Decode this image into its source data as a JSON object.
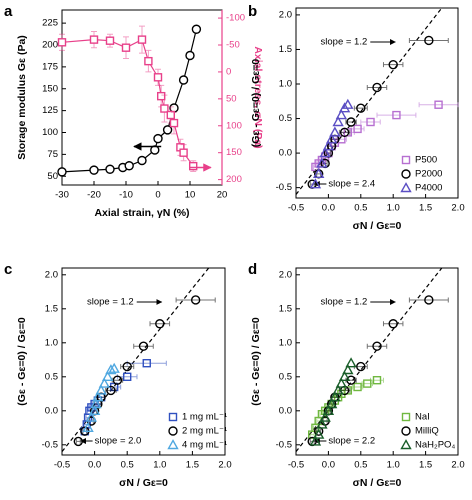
{
  "chart_data": [
    {
      "panel_label": "a",
      "type": "line",
      "xlabel": "Axial strain, γN (%)",
      "ylabel": "Storage modulus Gε (Pa)",
      "y2label": "Axial stress, σN (Pa)",
      "xlim": [
        -30,
        20
      ],
      "xticks": [
        -30,
        -20,
        -10,
        0,
        10,
        20
      ],
      "ylim": [
        40,
        240
      ],
      "yticks": [
        50,
        75,
        100,
        125,
        150,
        175,
        200,
        225
      ],
      "y2lim": [
        -115,
        210
      ],
      "y2_inverted": true,
      "y2ticks": [
        -100,
        -50,
        0,
        50,
        100,
        150,
        200
      ],
      "y2color": "#e8408a",
      "series": [
        {
          "color": "#000000",
          "marker": "circle",
          "x": [
            -30,
            -20,
            -15,
            -11,
            -9,
            -5,
            -1,
            0,
            3,
            5,
            8,
            10,
            12
          ],
          "values": [
            55,
            57,
            58,
            60,
            62,
            68,
            80,
            93,
            103,
            128,
            160,
            188,
            218
          ]
        },
        {
          "color": "#e8408a",
          "marker": "square",
          "axis": "y2",
          "x": [
            -30,
            -20,
            -15,
            -10,
            -5,
            -3,
            0,
            1,
            2,
            4,
            5,
            7,
            8,
            11
          ],
          "values": [
            -55,
            -60,
            -58,
            -45,
            -60,
            -20,
            10,
            45,
            68,
            80,
            95,
            140,
            150,
            175
          ],
          "errors": [
            15,
            15,
            12,
            20,
            25,
            20,
            15,
            20,
            25,
            15,
            20,
            15,
            15,
            10
          ]
        }
      ]
    },
    {
      "panel_label": "b",
      "type": "scatter",
      "xlabel": "σN / Gε=0",
      "ylabel": "(Gε - Gε=0) / Gε=0",
      "xlim": [
        -0.5,
        2.0
      ],
      "xticks": [
        -0.5,
        {
          "value": 0,
          "label": "0.0"
        },
        0.5,
        {
          "value": 1,
          "label": "1.0"
        },
        1.5,
        {
          "value": 2,
          "label": "2.0"
        }
      ],
      "ylim": [
        -0.65,
        2.1
      ],
      "yticks": [
        -0.5,
        {
          "value": 0,
          "label": "0.0"
        },
        0.5,
        {
          "value": 1,
          "label": "1.0"
        },
        1.5,
        {
          "value": 2,
          "label": "2.0"
        }
      ],
      "fit_slope": 1.2,
      "annotations": [
        "slope = 1.2",
        "slope = 2.4"
      ],
      "legend": "lower right",
      "series": [
        {
          "name": "P500",
          "color": "#b76fd1",
          "marker": "square",
          "x": [
            -0.2,
            -0.15,
            -0.1,
            -0.05,
            0,
            0.05,
            0.1,
            0.2,
            0.3,
            0.45,
            0.65,
            1.05,
            1.7
          ],
          "values": [
            -0.2,
            -0.15,
            -0.1,
            -0.05,
            0,
            0.1,
            0.15,
            0.2,
            0.3,
            0.35,
            0.45,
            0.55,
            0.7
          ],
          "xerr": [
            0.03,
            0.03,
            0.03,
            0.03,
            0.03,
            0.05,
            0.05,
            0.08,
            0.1,
            0.1,
            0.15,
            0.3,
            0.3
          ]
        },
        {
          "name": "P2000",
          "color": "#000000",
          "marker": "circle",
          "x": [
            -0.25,
            -0.15,
            -0.05,
            0,
            0.05,
            0.1,
            0.25,
            0.35,
            0.5,
            0.75,
            1.0,
            1.55
          ],
          "values": [
            -0.45,
            -0.3,
            -0.15,
            0,
            0.1,
            0.2,
            0.3,
            0.45,
            0.65,
            0.95,
            1.28,
            1.63
          ],
          "xerr": [
            0.03,
            0.03,
            0.03,
            0.03,
            0.05,
            0.05,
            0.08,
            0.08,
            0.1,
            0.15,
            0.15,
            0.3
          ]
        },
        {
          "name": "P4000",
          "color": "#5b4fc4",
          "marker": "triangle",
          "x": [
            -0.2,
            -0.15,
            -0.1,
            -0.05,
            0,
            0.05,
            0.1,
            0.15,
            0.2,
            0.25,
            0.3
          ],
          "values": [
            -0.45,
            -0.3,
            -0.15,
            0,
            0.1,
            0.2,
            0.3,
            0.45,
            0.55,
            0.65,
            0.7
          ]
        }
      ]
    },
    {
      "panel_label": "c",
      "type": "scatter",
      "xlabel": "σN / Gε=0",
      "ylabel": "(Gε - Gε=0) / Gε=0",
      "xlim": [
        -0.5,
        2.0
      ],
      "xticks": [
        -0.5,
        {
          "value": 0,
          "label": "0.0"
        },
        0.5,
        {
          "value": 1,
          "label": "1.0"
        },
        1.5,
        {
          "value": 2,
          "label": "2.0"
        }
      ],
      "ylim": [
        -0.65,
        2.1
      ],
      "yticks": [
        -0.5,
        {
          "value": 0,
          "label": "0.0"
        },
        0.5,
        {
          "value": 1,
          "label": "1.0"
        },
        1.5,
        {
          "value": 2,
          "label": "2.0"
        }
      ],
      "fit_slope": 1.2,
      "annotations": [
        "slope = 1.2",
        "slope = 2.0"
      ],
      "legend": "lower right",
      "series": [
        {
          "name": "1 mg mL⁻¹",
          "color": "#3050c0",
          "marker": "square",
          "x": [
            -0.15,
            -0.12,
            -0.1,
            -0.08,
            -0.05,
            0,
            0.05,
            0.1,
            0.3,
            0.5,
            0.8
          ],
          "values": [
            -0.3,
            -0.2,
            -0.1,
            0,
            0.05,
            0.1,
            0.15,
            0.2,
            0.35,
            0.5,
            0.7
          ],
          "xerr": [
            0.03,
            0.03,
            0.03,
            0.03,
            0.03,
            0.03,
            0.05,
            0.05,
            0.1,
            0.15,
            0.3
          ]
        },
        {
          "name": "2 mg mL⁻¹",
          "color": "#000000",
          "marker": "circle",
          "x": [
            -0.25,
            -0.15,
            -0.05,
            0,
            0.05,
            0.1,
            0.25,
            0.35,
            0.5,
            0.75,
            1.0,
            1.55
          ],
          "values": [
            -0.45,
            -0.3,
            -0.15,
            0,
            0.1,
            0.2,
            0.3,
            0.45,
            0.65,
            0.95,
            1.28,
            1.63
          ],
          "xerr": [
            0.03,
            0.03,
            0.03,
            0.03,
            0.05,
            0.05,
            0.08,
            0.08,
            0.1,
            0.15,
            0.15,
            0.3
          ]
        },
        {
          "name": "4 mg mL⁻¹",
          "color": "#50a8e0",
          "marker": "triangle",
          "x": [
            -0.1,
            -0.05,
            0,
            0.02,
            0.05,
            0.1,
            0.15,
            0.2,
            0.25,
            0.3
          ],
          "values": [
            -0.25,
            -0.1,
            0,
            0.1,
            0.2,
            0.3,
            0.4,
            0.5,
            0.6,
            0.62
          ]
        }
      ]
    },
    {
      "panel_label": "d",
      "type": "scatter",
      "xlabel": "σN / Gε=0",
      "ylabel": "(Gε - Gε=0) / Gε=0",
      "xlim": [
        -0.5,
        2.0
      ],
      "xticks": [
        -0.5,
        {
          "value": 0,
          "label": "0.0"
        },
        0.5,
        {
          "value": 1,
          "label": "1.0"
        },
        1.5,
        {
          "value": 2,
          "label": "2.0"
        }
      ],
      "ylim": [
        -0.65,
        2.1
      ],
      "yticks": [
        -0.5,
        {
          "value": 0,
          "label": "0.0"
        },
        0.5,
        {
          "value": 1,
          "label": "1.0"
        },
        1.5,
        {
          "value": 2,
          "label": "2.0"
        }
      ],
      "fit_slope": 1.2,
      "annotations": [
        "slope = 1.2",
        "slope = 2.2"
      ],
      "legend": "lower right",
      "series": [
        {
          "name": "NaI",
          "color": "#70b840",
          "marker": "square",
          "x": [
            -0.25,
            -0.2,
            -0.15,
            -0.1,
            -0.05,
            0,
            0.05,
            0.1,
            0.15,
            0.2,
            0.3,
            0.45,
            0.6,
            0.75
          ],
          "values": [
            -0.35,
            -0.25,
            -0.15,
            -0.05,
            0,
            0.05,
            0.1,
            0.15,
            0.2,
            0.25,
            0.3,
            0.35,
            0.4,
            0.45
          ],
          "xerr": [
            0.03,
            0.03,
            0.03,
            0.03,
            0.03,
            0.03,
            0.03,
            0.05,
            0.05,
            0.05,
            0.05,
            0.08,
            0.08,
            0.1
          ]
        },
        {
          "name": "MilliQ",
          "color": "#000000",
          "marker": "circle",
          "x": [
            -0.25,
            -0.15,
            -0.05,
            0,
            0.05,
            0.1,
            0.25,
            0.35,
            0.5,
            0.75,
            1.0,
            1.55
          ],
          "values": [
            -0.45,
            -0.3,
            -0.15,
            0,
            0.1,
            0.2,
            0.3,
            0.45,
            0.65,
            0.95,
            1.28,
            1.63
          ],
          "xerr": [
            0.03,
            0.03,
            0.03,
            0.03,
            0.05,
            0.05,
            0.08,
            0.08,
            0.1,
            0.15,
            0.15,
            0.3
          ]
        },
        {
          "name": "NaH₂PO₄",
          "color": "#1a5e2a",
          "marker": "triangle",
          "x": [
            -0.2,
            -0.15,
            -0.1,
            -0.05,
            0,
            0.05,
            0.1,
            0.15,
            0.2,
            0.25,
            0.3,
            0.35
          ],
          "values": [
            -0.45,
            -0.35,
            -0.2,
            -0.1,
            0,
            0.1,
            0.2,
            0.3,
            0.4,
            0.5,
            0.6,
            0.7
          ]
        }
      ]
    }
  ]
}
